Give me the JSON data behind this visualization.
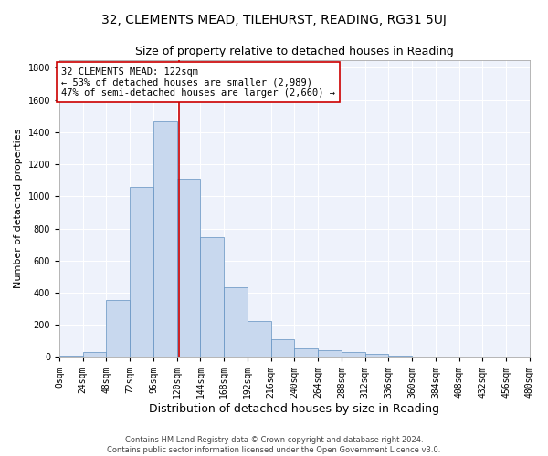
{
  "title1": "32, CLEMENTS MEAD, TILEHURST, READING, RG31 5UJ",
  "title2": "Size of property relative to detached houses in Reading",
  "xlabel": "Distribution of detached houses by size in Reading",
  "ylabel": "Number of detached properties",
  "footer1": "Contains HM Land Registry data © Crown copyright and database right 2024.",
  "footer2": "Contains public sector information licensed under the Open Government Licence v3.0.",
  "bar_edges": [
    0,
    24,
    48,
    72,
    96,
    120,
    144,
    168,
    192,
    216,
    240,
    264,
    288,
    312,
    336,
    360,
    384,
    408,
    432,
    456,
    480
  ],
  "bar_heights": [
    10,
    30,
    355,
    1060,
    1465,
    1110,
    748,
    435,
    222,
    110,
    55,
    45,
    30,
    20,
    10,
    5,
    2,
    1,
    0,
    0
  ],
  "bar_color": "#c8d8ee",
  "bar_edge_color": "#6090c0",
  "vline_x": 122,
  "vline_color": "#cc0000",
  "annotation_text": "32 CLEMENTS MEAD: 122sqm\n← 53% of detached houses are smaller (2,989)\n47% of semi-detached houses are larger (2,660) →",
  "annotation_box_color": "#cc0000",
  "annotation_text_color": "#000000",
  "ylim": [
    0,
    1850
  ],
  "yticks": [
    0,
    200,
    400,
    600,
    800,
    1000,
    1200,
    1400,
    1600,
    1800
  ],
  "bg_color": "#eef2fb",
  "grid_color": "#ffffff",
  "title1_fontsize": 10,
  "title2_fontsize": 9,
  "xlabel_fontsize": 9,
  "ylabel_fontsize": 8,
  "tick_fontsize": 7,
  "annotation_fontsize": 7.5,
  "footer_fontsize": 6
}
